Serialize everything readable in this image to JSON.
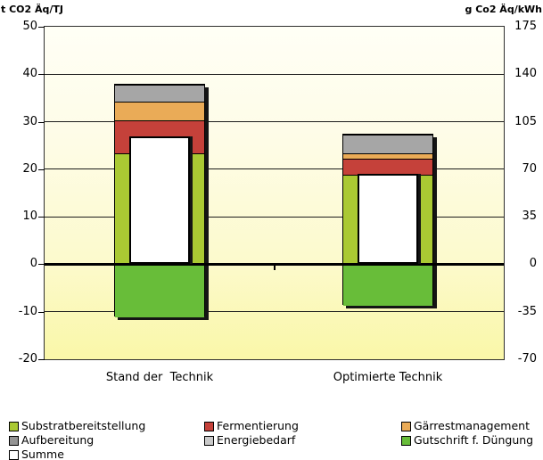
{
  "chart_data": {
    "type": "bar",
    "stacked": true,
    "title": "",
    "categories": [
      "Stand der  Technik",
      "Optimierte Technik"
    ],
    "category_keys": [
      "stand-der-technik",
      "optimierte-technik"
    ],
    "series": [
      {
        "key": "substratbereitstellung",
        "name": "Substratbereitstellung",
        "color": "#aac933",
        "values": [
          23.5,
          19
        ]
      },
      {
        "key": "fermentierung",
        "name": "Fermentierung",
        "color": "#c5413a",
        "values": [
          7,
          3.5
        ]
      },
      {
        "key": "gaerrestmanagement",
        "name": "Gärrestmanagement",
        "color": "#eaab57",
        "values": [
          4,
          1
        ]
      },
      {
        "key": "aufbereitung",
        "name": "Aufbereitung",
        "color": "#a6a6a6",
        "values": [
          3.5,
          4
        ]
      },
      {
        "key": "energiebedarf",
        "name": "Energiebedarf",
        "color": "#c9c9c9",
        "values": [
          0,
          0
        ]
      },
      {
        "key": "gutschrift-duengung",
        "name": "Gutschrift f. Düngung",
        "color": "#68bd39",
        "values": [
          -11,
          -8.5
        ]
      },
      {
        "key": "summe",
        "name": "Summe",
        "color": "#ffffff",
        "values": [
          27,
          19
        ],
        "overlay": true
      }
    ],
    "left_axis": {
      "label": "t CO2 Äq/TJ",
      "ticks": [
        50,
        40,
        30,
        20,
        10,
        0,
        -10,
        -20
      ],
      "range": [
        -20,
        50
      ]
    },
    "right_axis": {
      "label": "g Co2 Äq/kWh",
      "ticks": [
        175,
        140,
        105,
        70,
        35,
        0,
        -35,
        -70
      ],
      "range": [
        -70,
        175
      ]
    },
    "grid": true,
    "legend_position": "bottom",
    "plot_background": [
      "#fffff6",
      "#faf7a8"
    ]
  },
  "legend": {
    "items": [
      {
        "label": "Substratbereitstellung",
        "color": "#aac933"
      },
      {
        "label": "Fermentierung",
        "color": "#c5413a"
      },
      {
        "label": "Gärrestmanagement",
        "color": "#eaab57"
      },
      {
        "label": "Aufbereitung",
        "color": "#949494"
      },
      {
        "label": "Energiebedarf",
        "color": "#c9c9c9"
      },
      {
        "label": "Gutschrift f. Düngung",
        "color": "#68bd39"
      },
      {
        "label": "Summe",
        "color": "#ffffff"
      }
    ]
  }
}
